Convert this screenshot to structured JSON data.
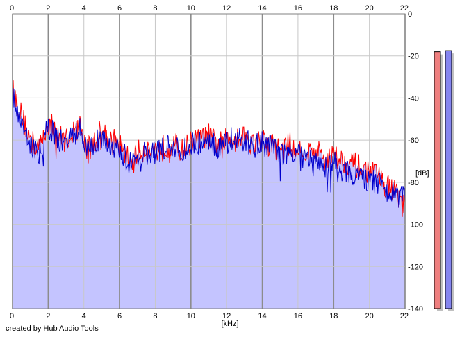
{
  "credit": "created by Hub Audio Tools",
  "chart_data": {
    "type": "area",
    "xlabel": "[kHz]",
    "ylabel": "[dB]",
    "xlim": [
      0,
      22
    ],
    "ylim": [
      -140,
      0
    ],
    "x_ticks": [
      0,
      2,
      4,
      6,
      8,
      10,
      12,
      14,
      16,
      18,
      20,
      22
    ],
    "y_ticks": [
      0,
      -20,
      -40,
      -60,
      -80,
      -100,
      -120,
      -140
    ],
    "grid": true,
    "colors": {
      "fill": "#c4c4ff",
      "left_channel": "#ff0000",
      "right_channel": "#0000cc",
      "grid": "#c8c8c8",
      "grid_major": "#8c8c8c",
      "meter_left": "#ef7f7f",
      "meter_right": "#8585ef",
      "meter_shadow": "#c0c0c0"
    },
    "series": [
      {
        "color": "#ff0000",
        "x": [
          0,
          0.25,
          0.5,
          0.75,
          1,
          1.5,
          2,
          2.3,
          2.6,
          3,
          3.5,
          3.8,
          4,
          4.3,
          4.6,
          5,
          5.3,
          5.6,
          6,
          6.3,
          6.6,
          7,
          7.5,
          8,
          8.5,
          9,
          9.5,
          10,
          10.5,
          11,
          11.5,
          12,
          12.5,
          13,
          13.5,
          14,
          14.5,
          15,
          15.5,
          16,
          16.5,
          17,
          17.5,
          18,
          18.5,
          19,
          19.5,
          20,
          20.5,
          21,
          21.5,
          22
        ],
        "y": [
          -36,
          -42,
          -48,
          -54,
          -60,
          -64,
          -52,
          -54,
          -58,
          -60,
          -55,
          -53,
          -60,
          -63,
          -61,
          -54,
          -58,
          -60,
          -62,
          -67,
          -70,
          -66,
          -64,
          -65,
          -63,
          -62,
          -65,
          -61,
          -60,
          -58,
          -62,
          -60,
          -58,
          -58,
          -62,
          -60,
          -62,
          -65,
          -62,
          -64,
          -66,
          -65,
          -68,
          -67,
          -70,
          -71,
          -73,
          -75,
          -77,
          -82,
          -84,
          -92
        ]
      },
      {
        "color": "#0000cc",
        "x": [
          0,
          0.25,
          0.5,
          0.75,
          1,
          1.5,
          2,
          2.3,
          2.6,
          3,
          3.5,
          3.8,
          4,
          4.3,
          4.6,
          5,
          5.3,
          5.6,
          6,
          6.3,
          6.6,
          7,
          7.5,
          8,
          8.5,
          9,
          9.5,
          10,
          10.5,
          11,
          11.5,
          12,
          12.5,
          13,
          13.5,
          14,
          14.5,
          15,
          15.5,
          16,
          16.5,
          17,
          17.5,
          18,
          18.5,
          19,
          19.5,
          20,
          20.5,
          21,
          21.5,
          22
        ],
        "y": [
          -38,
          -44,
          -50,
          -56,
          -62,
          -66,
          -54,
          -56,
          -60,
          -62,
          -57,
          -55,
          -62,
          -65,
          -63,
          -56,
          -60,
          -62,
          -64,
          -68,
          -71,
          -68,
          -66,
          -66,
          -64,
          -63,
          -66,
          -62,
          -61,
          -60,
          -63,
          -61,
          -58,
          -60,
          -63,
          -61,
          -64,
          -67,
          -65,
          -67,
          -70,
          -69,
          -72,
          -71,
          -74,
          -75,
          -77,
          -79,
          -81,
          -84,
          -86,
          -88
        ]
      }
    ],
    "level_meters": {
      "left_db": -18,
      "right_db": -17.5
    },
    "meter_range": [
      -140,
      0
    ]
  }
}
